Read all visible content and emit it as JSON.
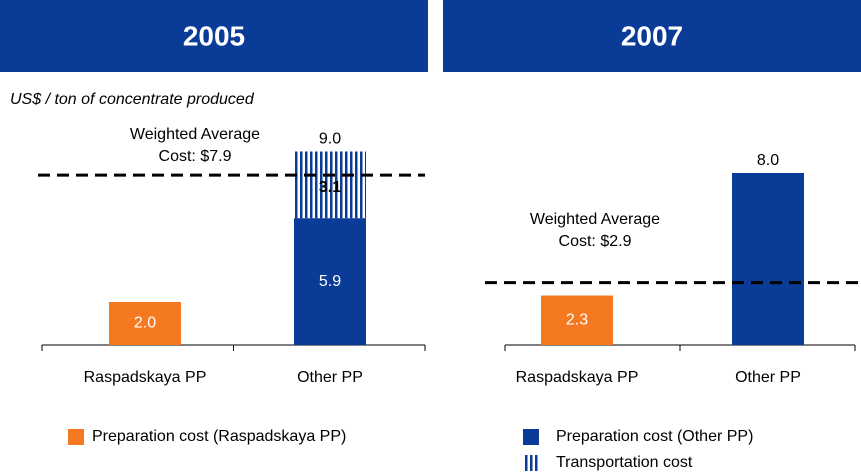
{
  "subtitle": "US$ / ton of concentrate produced",
  "chart_data": [
    {
      "type": "bar",
      "stacked": true,
      "title": "2005",
      "categories": [
        "Raspadskaya PP",
        "Other PP"
      ],
      "series": [
        {
          "name": "Preparation cost (Raspadskaya PP)",
          "color": "#f47920",
          "legend": true,
          "values": [
            2.0,
            null
          ],
          "value_labels": [
            "2.0",
            null
          ]
        },
        {
          "name": "Preparation cost (Other PP)",
          "color": "#0a3b96",
          "legend": false,
          "values": [
            null,
            5.9
          ],
          "value_labels": [
            null,
            "5.9"
          ]
        },
        {
          "name": "Transportation cost",
          "color": "#0a3b96",
          "pattern": "vertical-stripes",
          "legend": false,
          "values": [
            null,
            3.1
          ],
          "value_labels": [
            null,
            "3.1"
          ]
        }
      ],
      "totals": [
        null,
        9.0
      ],
      "total_labels": [
        null,
        "9.0"
      ],
      "reference": {
        "value": 7.9,
        "label_lines": [
          "Weighted Average",
          "Cost: $7.9"
        ]
      }
    },
    {
      "type": "bar",
      "stacked": true,
      "title": "2007",
      "categories": [
        "Raspadskaya PP",
        "Other PP"
      ],
      "series": [
        {
          "name": "Preparation cost (Raspadskaya PP)",
          "color": "#f47920",
          "legend": false,
          "values": [
            2.3,
            null
          ],
          "value_labels": [
            "2.3",
            null
          ]
        },
        {
          "name": "Preparation cost (Other PP)",
          "color": "#0a3b96",
          "legend": true,
          "values": [
            null,
            8.0
          ],
          "value_labels": [
            null,
            null
          ]
        },
        {
          "name": "Transportation cost",
          "color": "#0a3b96",
          "pattern": "vertical-stripes",
          "legend": true,
          "values": [
            null,
            null
          ],
          "value_labels": [
            null,
            null
          ]
        }
      ],
      "totals": [
        null,
        8.0
      ],
      "total_labels": [
        null,
        "8.0"
      ],
      "reference": {
        "value": 2.9,
        "label_lines": [
          "Weighted Average",
          "Cost: $2.9"
        ]
      }
    }
  ]
}
